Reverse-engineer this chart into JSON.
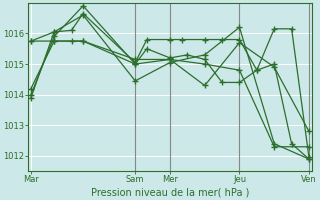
{
  "background_color": "#cce8e8",
  "grid_color": "#ffffff",
  "line_color": "#2d6e2d",
  "xlabel": "Pression niveau de la mer( hPa )",
  "xlabel_fontsize": 7,
  "ylim": [
    1011.5,
    1017.0
  ],
  "yticks": [
    1012,
    1013,
    1014,
    1015,
    1016
  ],
  "xtick_labels": [
    "Mar",
    "Sam",
    "Mer",
    "Jeu",
    "Ven"
  ],
  "xtick_positions": [
    0,
    36,
    48,
    72,
    96
  ],
  "total_x": 96,
  "series": [
    {
      "x": [
        0,
        8,
        14,
        18,
        36,
        40,
        48,
        52,
        60,
        66,
        72,
        78,
        84,
        90,
        96
      ],
      "y": [
        1013.9,
        1016.05,
        1016.1,
        1016.65,
        1015.05,
        1015.8,
        1015.8,
        1015.8,
        1015.8,
        1015.8,
        1015.8,
        1014.8,
        1016.15,
        1016.15,
        1011.95
      ]
    },
    {
      "x": [
        0,
        8,
        14,
        18,
        36,
        40,
        48,
        54,
        60,
        66,
        72,
        78,
        84,
        90,
        96
      ],
      "y": [
        1014.2,
        1015.75,
        1015.75,
        1015.75,
        1015.0,
        1015.5,
        1015.2,
        1015.3,
        1015.15,
        1014.4,
        1014.4,
        1014.8,
        1015.0,
        1012.4,
        1011.9
      ]
    },
    {
      "x": [
        0,
        8,
        18,
        36,
        48,
        60,
        72,
        84,
        96
      ],
      "y": [
        1015.75,
        1015.75,
        1015.75,
        1015.15,
        1015.15,
        1015.0,
        1014.8,
        1012.3,
        1012.3
      ]
    },
    {
      "x": [
        0,
        8,
        18,
        36,
        48,
        60,
        72,
        84,
        96
      ],
      "y": [
        1014.0,
        1015.9,
        1016.9,
        1015.0,
        1015.15,
        1014.3,
        1015.7,
        1014.9,
        1012.8
      ]
    },
    {
      "x": [
        0,
        8,
        18,
        36,
        48,
        60,
        72,
        84,
        96
      ],
      "y": [
        1015.75,
        1016.05,
        1016.6,
        1014.45,
        1015.05,
        1015.3,
        1016.2,
        1012.4,
        1011.9
      ]
    }
  ],
  "vline_positions": [
    36,
    48,
    72,
    96
  ],
  "vline_color": "#888888",
  "marker": "+",
  "markersize": 4,
  "linewidth": 0.9
}
